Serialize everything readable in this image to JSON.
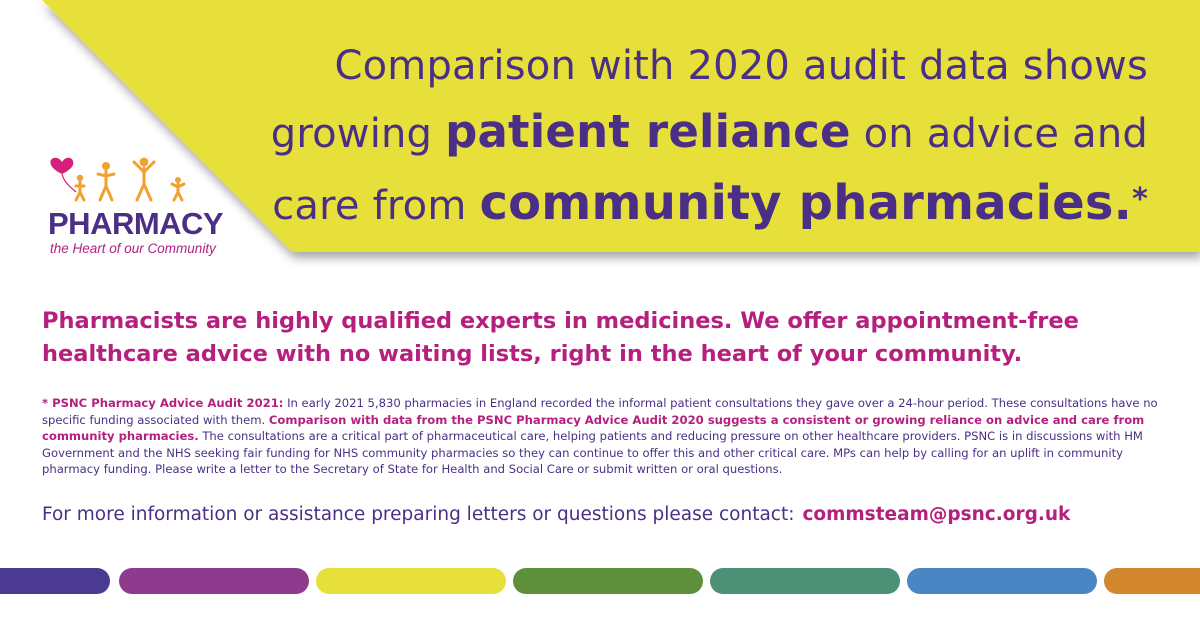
{
  "headline": {
    "line1": "Comparison with 2020 audit data shows",
    "line2_pre": "growing ",
    "line2_bold": "patient reliance",
    "line2_post": " on advice and",
    "line3_pre": "care from ",
    "line3_bold": "community pharmacies.",
    "line3_star": "*"
  },
  "logo": {
    "word": "PHARMACY",
    "tagline": "the Heart of our Community"
  },
  "lead": "Pharmacists are highly qualified experts in medicines. We offer appointment-free healthcare advice with no waiting lists, right in the heart of your community.",
  "footnote": {
    "lead_bold": "* PSNC Pharmacy Advice Audit 2021:",
    "part1": " In early 2021 5,830 pharmacies in England recorded the informal patient consultations they gave over a 24-hour period. These consultations have no specific funding associated with them. ",
    "highlight": "Comparison with data from the PSNC Pharmacy Advice Audit 2020 suggests a consistent or growing reliance on advice and care from community pharmacies.",
    "part2": " The consultations are a critical part of pharmaceutical care, helping patients and reducing pressure on other healthcare providers. PSNC is in discussions with HM Government and the NHS seeking fair funding for NHS community pharmacies so they can continue to offer this and other critical care. MPs can help by calling for an uplift in community pharmacy funding. Please write a letter to the Secretary of State for Health and Social Care or submit written or oral questions."
  },
  "contact": {
    "text": "For more information or assistance preparing letters or questions please contact:",
    "email": "commsteam@psnc.org.uk"
  },
  "colors": {
    "purple": "#4b2f86",
    "magenta": "#b51f7e",
    "yellow": "#e7e03a",
    "stripes": [
      "#4b3a91",
      "#8e3b8e",
      "#e8e03a",
      "#5e8f3a",
      "#4c9176",
      "#4b86c4",
      "#d2862e"
    ]
  }
}
